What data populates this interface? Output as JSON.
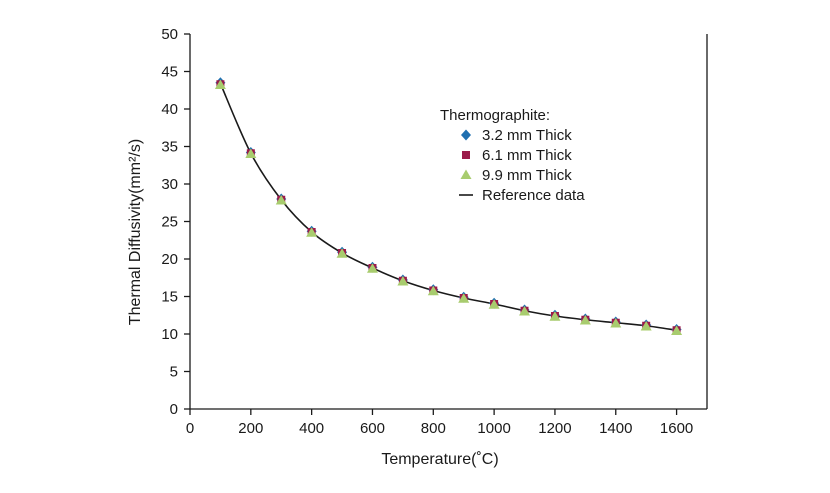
{
  "chart_data": {
    "type": "scatter",
    "title": "",
    "xlabel": "Temperature(˚C)",
    "ylabel": "Thermal Diffusivity(mm²/s)",
    "xlim": [
      0,
      1700
    ],
    "ylim": [
      0,
      50
    ],
    "xticks": [
      "0",
      "200",
      "400",
      "600",
      "800",
      "1000",
      "1200",
      "1400",
      "1600"
    ],
    "yticks": [
      "0",
      "5",
      "10",
      "15",
      "20",
      "25",
      "30",
      "35",
      "40",
      "45",
      "50"
    ],
    "grid": false,
    "legend": {
      "title": "Thermographite:",
      "position": "top-right"
    },
    "x": [
      100,
      200,
      300,
      400,
      500,
      600,
      700,
      800,
      900,
      1000,
      1100,
      1200,
      1300,
      1400,
      1500,
      1600
    ],
    "series": [
      {
        "name": "3.2 mm Thick",
        "marker": "diamond",
        "color": "#1f6fb0",
        "values": [
          43.5,
          34.2,
          28.0,
          23.7,
          20.9,
          18.9,
          17.2,
          15.9,
          14.9,
          14.1,
          13.2,
          12.5,
          12.0,
          11.6,
          11.2,
          10.6
        ]
      },
      {
        "name": "6.1 mm Thick",
        "marker": "square",
        "color": "#9b1b4a",
        "values": [
          43.3,
          34.1,
          27.9,
          23.6,
          20.8,
          18.8,
          17.1,
          15.8,
          14.8,
          14.0,
          13.1,
          12.4,
          11.9,
          11.5,
          11.1,
          10.5
        ]
      },
      {
        "name": "9.9 mm Thick",
        "marker": "triangle",
        "color": "#a8cc6e",
        "values": [
          43.2,
          34.0,
          27.8,
          23.5,
          20.7,
          18.7,
          17.0,
          15.7,
          14.7,
          13.9,
          13.0,
          12.3,
          11.8,
          11.4,
          11.0,
          10.4
        ]
      },
      {
        "name": "Reference data",
        "marker": "line",
        "color": "#1a1a1a",
        "values": [
          43.4,
          34.1,
          27.9,
          23.6,
          20.8,
          18.8,
          17.1,
          15.8,
          14.8,
          14.0,
          13.1,
          12.4,
          11.9,
          11.5,
          11.1,
          10.5
        ]
      }
    ]
  }
}
